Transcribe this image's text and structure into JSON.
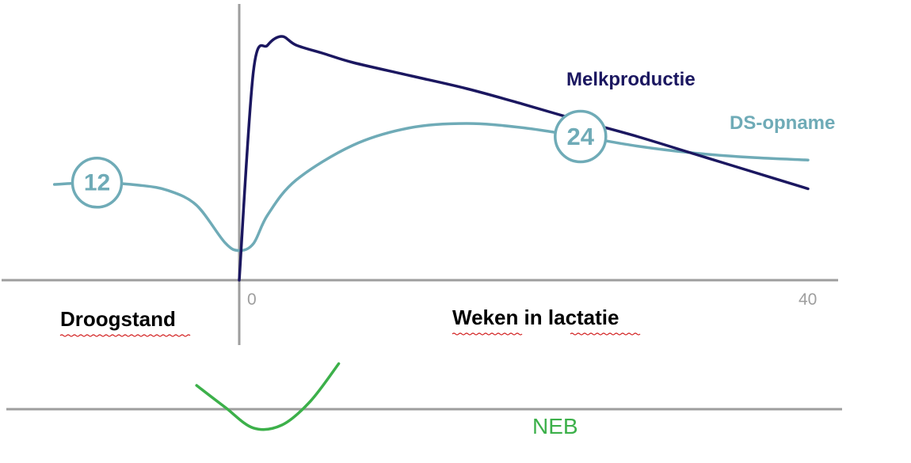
{
  "chart_data": {
    "type": "line",
    "xlabel_left": "Droogstand",
    "xlabel_right": "Weken in lactatie",
    "x_ticks": [
      "0",
      "40"
    ],
    "series": [
      {
        "name": "Melkproductie",
        "color": "#1b1760",
        "x": [
          0,
          1,
          2,
          3,
          4,
          6,
          8,
          12,
          16,
          20,
          24,
          28,
          32,
          36,
          40
        ],
        "y": [
          0,
          24,
          27,
          28,
          27,
          26,
          25,
          23.5,
          22,
          20.2,
          18.3,
          16.5,
          14.5,
          12.5,
          10.5
        ]
      },
      {
        "name": "DS-opname",
        "color": "#6fabb7",
        "x": [
          -13,
          -10,
          -7,
          -5,
          -3,
          -1,
          0,
          1,
          2,
          4,
          8,
          12,
          16,
          20,
          24,
          28,
          32,
          36,
          40
        ],
        "y": [
          11,
          11.2,
          10.9,
          10.3,
          8.6,
          4.3,
          3.4,
          4.2,
          7.5,
          11.5,
          15.5,
          17.5,
          18,
          17.5,
          16.5,
          15.4,
          14.6,
          14.1,
          13.8
        ]
      },
      {
        "name": "NEB",
        "color": "#3cb04a",
        "x": [
          -3,
          -1,
          1,
          3,
          5,
          7
        ],
        "y": [
          2.4,
          0.2,
          -1.9,
          -1.6,
          0.8,
          4.6
        ]
      }
    ],
    "markers": [
      {
        "value": "12",
        "x": -10,
        "series": "DS-opname"
      },
      {
        "value": "24",
        "x": 24,
        "series": "DS-opname"
      }
    ],
    "grid": false
  },
  "colors": {
    "axis": "#9e9e9e",
    "marker": "#6fabb7",
    "label_text": "#000000",
    "spell_underline": "#d21c1c"
  }
}
